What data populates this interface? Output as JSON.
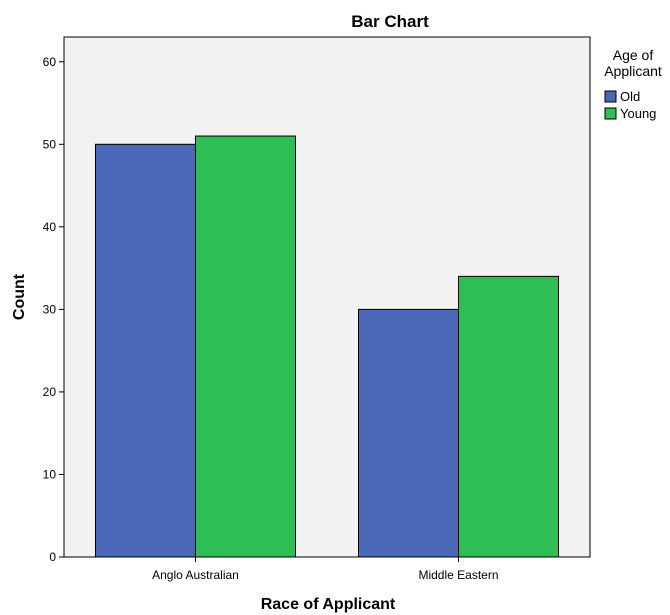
{
  "chart_data": {
    "type": "bar",
    "title": "Bar Chart",
    "xlabel": "Race of Applicant",
    "ylabel": "Count",
    "categories": [
      "Anglo Australian",
      "Middle Eastern"
    ],
    "series": [
      {
        "name": "Old",
        "values": [
          50,
          30
        ],
        "color": "#4a67b8"
      },
      {
        "name": "Young",
        "values": [
          51,
          34
        ],
        "color": "#2ebe55"
      }
    ],
    "ylim": [
      0,
      63
    ],
    "yticks": [
      0,
      10,
      20,
      30,
      40,
      50,
      60
    ],
    "grid": false,
    "legend": {
      "title_lines": [
        "Age of",
        "Applicant"
      ],
      "placement": "right-top"
    },
    "plot_background": "#f2f2f2"
  }
}
